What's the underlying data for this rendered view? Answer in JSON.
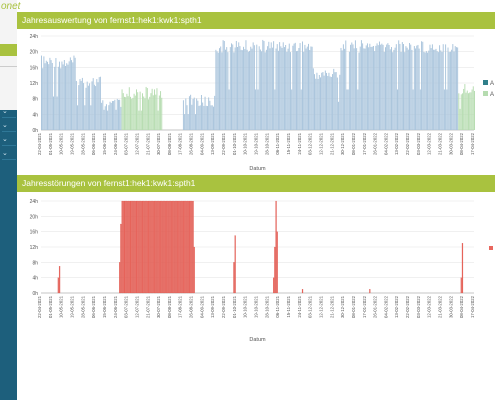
{
  "logo": {
    "text": "onet"
  },
  "colors": {
    "accent": "#a9c23f",
    "sidebar": "#1d5f7c",
    "series1": "#a9c4dc",
    "series2": "#b6dcb0",
    "faults": "#e9675e",
    "dark_marker": "#2f7f8a"
  },
  "panel1": {
    "title": "Jahresauswertung von fernst1:hek1:kwk1:spth1",
    "chart_data": {
      "type": "bar",
      "xlabel": "Datum",
      "ylabel": "",
      "ylim": [
        0,
        24
      ],
      "yticks": [
        "0h",
        "4h",
        "8h",
        "12h",
        "16h",
        "20h",
        "24h"
      ],
      "xticks": [
        "22-04-2021",
        "01-05-2021",
        "10-05-2021",
        "19-05-2021",
        "28-05-2021",
        "06-06-2021",
        "15-06-2021",
        "24-06-2021",
        "03-07-2021",
        "12-07-2021",
        "21-07-2021",
        "30-07-2021",
        "08-08-2021",
        "17-08-2021",
        "26-08-2021",
        "04-09-2021",
        "13-09-2021",
        "22-09-2021",
        "01-10-2021",
        "10-10-2021",
        "19-10-2021",
        "28-10-2021",
        "06-11-2021",
        "15-11-2021",
        "24-11-2021",
        "03-12-2021",
        "12-12-2021",
        "21-12-2021",
        "30-12-2021",
        "08-01-2022",
        "17-01-2022",
        "26-01-2022",
        "04-02-2022",
        "13-02-2022",
        "22-02-2022",
        "03-03-2022",
        "12-03-2022",
        "21-03-2022",
        "30-03-2022",
        "08-04-2022",
        "17-04-2022"
      ],
      "legend": {
        "placement": "right",
        "entries": [
          "A",
          "A"
        ]
      },
      "series": [
        {
          "segments": [
            {
              "from": "22-04-2021",
              "to": "20-05-2021",
              "level_h": 19
            },
            {
              "from": "21-05-2021",
              "to": "10-06-2021",
              "level_h": 14
            },
            {
              "from": "11-06-2021",
              "to": "27-06-2021",
              "level_h": 8
            },
            {
              "from": "18-08-2021",
              "to": "13-09-2021",
              "level_h": 9
            },
            {
              "from": "14-09-2021",
              "to": "03-12-2021",
              "level_h": 23
            },
            {
              "from": "04-12-2021",
              "to": "26-12-2021",
              "level_h": 16
            },
            {
              "from": "27-12-2021",
              "to": "03-04-2022",
              "level_h": 23
            }
          ]
        },
        {
          "segments": [
            {
              "from": "28-06-2021",
              "to": "31-07-2021",
              "level_h": 11
            },
            {
              "from": "04-04-2022",
              "to": "17-04-2022",
              "level_h": 12
            }
          ]
        }
      ]
    }
  },
  "panel2": {
    "title": "Jahresstörungen von fernst1:hek1:kwk1:spth1",
    "chart_data": {
      "type": "bar",
      "xlabel": "Datum",
      "ylabel": "",
      "ylim": [
        0,
        24
      ],
      "yticks": [
        "0h",
        "4h",
        "8h",
        "12h",
        "16h",
        "20h",
        "24h"
      ],
      "xticks": [
        "22-04-2021",
        "01-05-2021",
        "10-05-2021",
        "19-05-2021",
        "28-05-2021",
        "06-06-2021",
        "15-06-2021",
        "24-06-2021",
        "03-07-2021",
        "12-07-2021",
        "21-07-2021",
        "30-07-2021",
        "08-08-2021",
        "17-08-2021",
        "26-08-2021",
        "04-09-2021",
        "13-09-2021",
        "22-09-2021",
        "01-10-2021",
        "10-10-2021",
        "19-10-2021",
        "28-10-2021",
        "06-11-2021",
        "15-11-2021",
        "24-11-2021",
        "03-12-2021",
        "12-12-2021",
        "21-12-2021",
        "30-12-2021",
        "08-01-2022",
        "17-01-2022",
        "26-01-2022",
        "04-02-2022",
        "13-02-2022",
        "22-02-2022",
        "03-03-2022",
        "12-03-2022",
        "21-03-2022",
        "30-03-2022",
        "08-04-2022",
        "17-04-2022"
      ],
      "series": [
        {
          "bars": [
            {
              "date": "06-05-2021",
              "value_h": 4
            },
            {
              "date": "07-05-2021",
              "value_h": 7
            },
            {
              "date": "26-06-2021",
              "value_h": 8
            },
            {
              "date": "27-06-2021",
              "value_h": 18
            },
            {
              "date": "28-06-2021",
              "to": "26-08-2021",
              "value_h": 24
            },
            {
              "date": "27-08-2021",
              "value_h": 12
            },
            {
              "date": "29-09-2021",
              "value_h": 8
            },
            {
              "date": "30-09-2021",
              "value_h": 15
            },
            {
              "date": "01-11-2021",
              "value_h": 4
            },
            {
              "date": "02-11-2021",
              "value_h": 12
            },
            {
              "date": "03-11-2021",
              "value_h": 24
            },
            {
              "date": "04-11-2021",
              "value_h": 16
            },
            {
              "date": "25-11-2021",
              "value_h": 1
            },
            {
              "date": "20-01-2022",
              "value_h": 1
            },
            {
              "date": "06-04-2022",
              "value_h": 4
            },
            {
              "date": "07-04-2022",
              "value_h": 13
            }
          ]
        }
      ]
    }
  }
}
